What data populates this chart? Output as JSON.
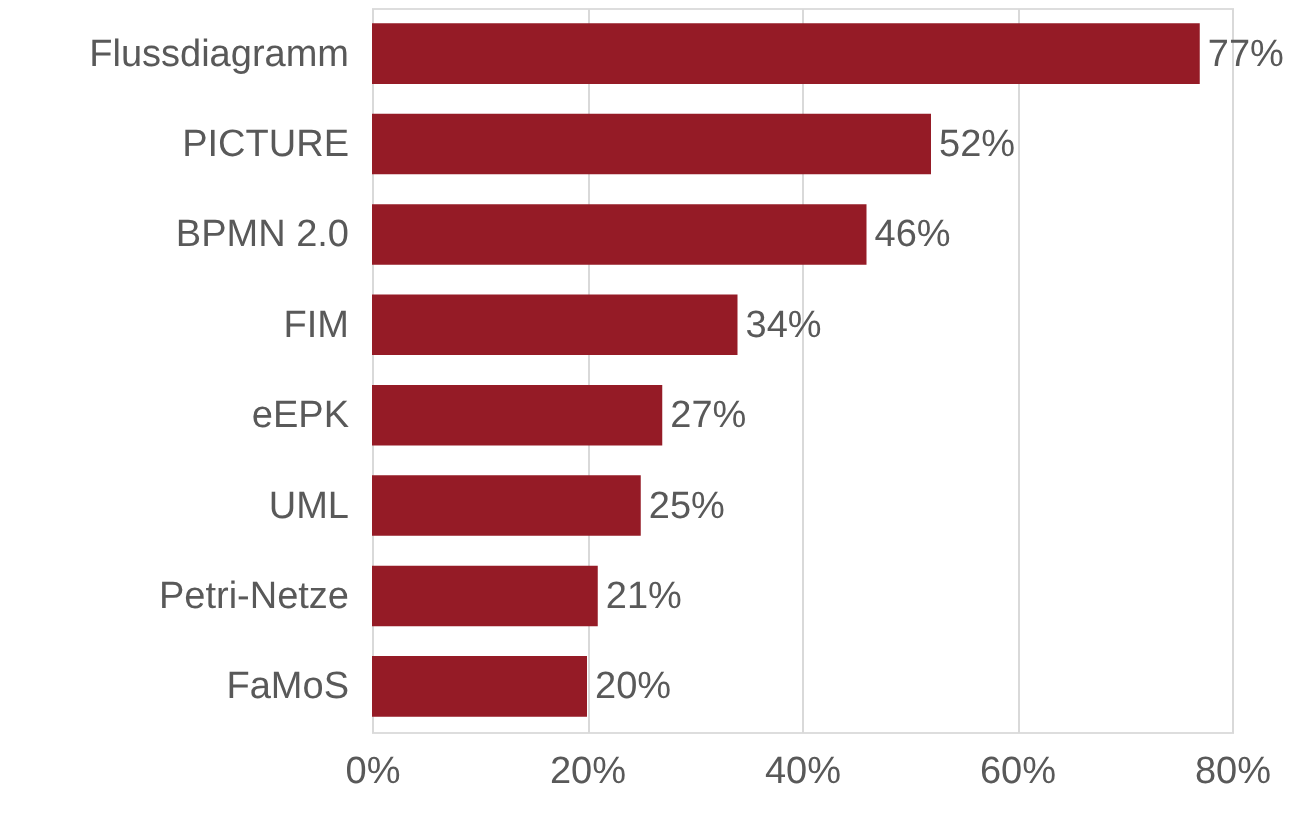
{
  "chart_data": {
    "type": "bar",
    "orientation": "horizontal",
    "categories": [
      "Flussdiagramm",
      "PICTURE",
      "BPMN 2.0",
      "FIM",
      "eEPK",
      "UML",
      "Petri-Netze",
      "FaMoS"
    ],
    "values": [
      77,
      52,
      46,
      34,
      27,
      25,
      21,
      20
    ],
    "value_labels": [
      "77%",
      "52%",
      "46%",
      "34%",
      "27%",
      "25%",
      "21%",
      "20%"
    ],
    "color": "#951b26",
    "xlim": [
      0,
      80
    ],
    "xticks": [
      {
        "value": 0,
        "label": "0%"
      },
      {
        "value": 20,
        "label": "20%"
      },
      {
        "value": 40,
        "label": "40%"
      },
      {
        "value": 60,
        "label": "60%"
      },
      {
        "value": 80,
        "label": "80%"
      }
    ],
    "grid": "x"
  }
}
